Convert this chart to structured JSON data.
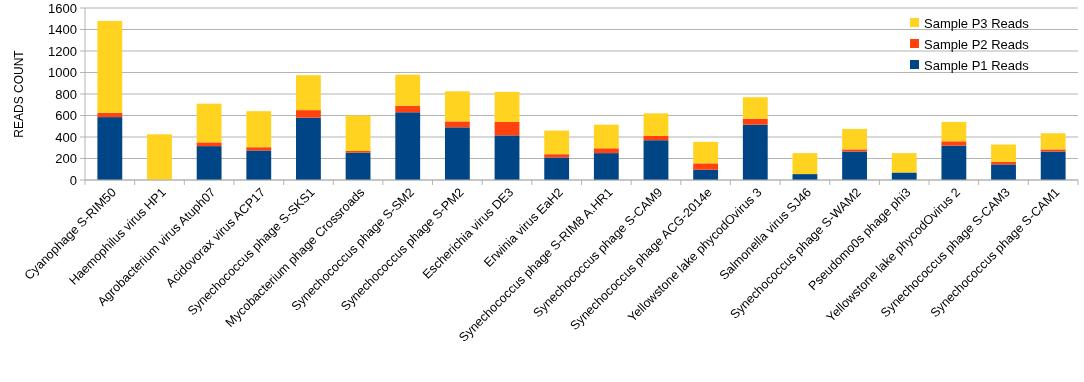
{
  "chart_data": {
    "type": "bar",
    "stacked": true,
    "ylabel": "READS COUNT",
    "categories": [
      "Cyanophage S-RIM50",
      "Haemophilus virus HP1",
      "Agrobacterium virus Atuph07",
      "Acidovorax virus ACP17",
      "Synechococcus phage S-SKS1",
      "Mycobacterium phage Crossroads",
      "Synechococcus phage S-SM2",
      "Synechococcus phage S-PM2",
      "Escherichia virus DE3",
      "Erwinia virus EaH2",
      "Synechococcus phage S-RIM8 A.HR1",
      "Synechococcus phage S-CAM9",
      "Synechococcus phage ACG-2014e",
      "Yellowstone lake phycodOvirus 3",
      "Salmonella virus SJ46",
      "Synechococcus phage S-WAM2",
      "Pseudomo0s phage phi3",
      "Yellowstone lake phycodOvirus 2",
      "Synechococcus phage S-CAM3",
      "Synechococcus phage S-CAM1"
    ],
    "series": [
      {
        "name": "Sample P1 Reads",
        "color": "#004586",
        "values": [
          585,
          0,
          315,
          275,
          580,
          255,
          630,
          490,
          415,
          210,
          250,
          370,
          95,
          515,
          55,
          265,
          70,
          320,
          145,
          265
        ]
      },
      {
        "name": "Sample P2 Reads",
        "color": "#ff420e",
        "values": [
          40,
          0,
          35,
          30,
          70,
          15,
          60,
          55,
          125,
          30,
          45,
          40,
          60,
          55,
          0,
          20,
          0,
          40,
          25,
          20
        ]
      },
      {
        "name": "Sample P3 Reads",
        "color": "#ffd320",
        "values": [
          855,
          425,
          360,
          335,
          325,
          330,
          290,
          280,
          280,
          220,
          220,
          210,
          200,
          200,
          195,
          190,
          180,
          180,
          160,
          150
        ]
      }
    ],
    "ylim": [
      0,
      1600
    ],
    "yticks": [
      0,
      200,
      400,
      600,
      800,
      1000,
      1200,
      1400,
      1600
    ],
    "grid": "y",
    "legend": "top right"
  }
}
